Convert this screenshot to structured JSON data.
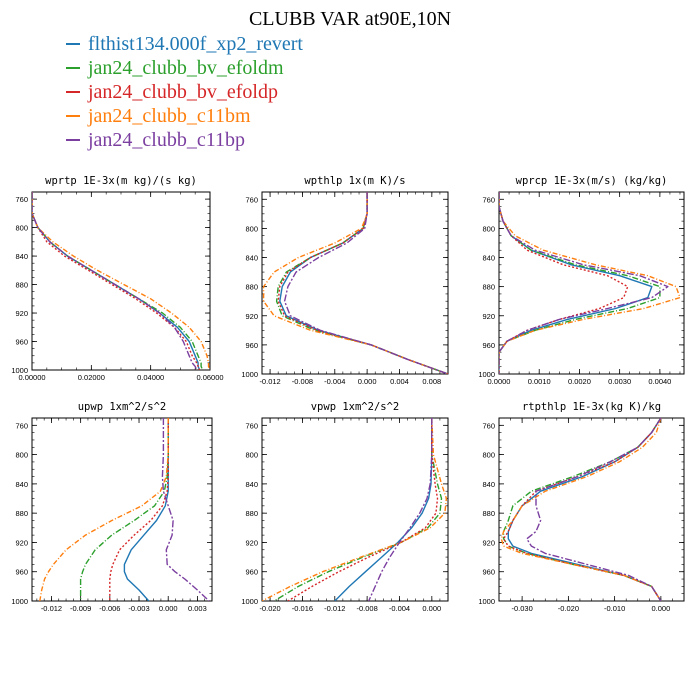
{
  "figure": {
    "title": "CLUBB VAR at90E,10N"
  },
  "legend": [
    {
      "label": "flthist134.000f_xp2_revert",
      "color": "#1f77b4",
      "dash": ""
    },
    {
      "label": "jan24_clubb_bv_efoldm",
      "color": "#2ca02c",
      "dash": "6,2,1,2"
    },
    {
      "label": "jan24_clubb_bv_efoldp",
      "color": "#d62728",
      "dash": "2,2"
    },
    {
      "label": "jan24_clubb_c11bm",
      "color": "#ff7f0e",
      "dash": "5,2,1,2"
    },
    {
      "label": "jan24_clubb_c11bp",
      "color": "#7b3fa0",
      "dash": "7,2,2,2"
    }
  ],
  "chart_data": [
    {
      "type": "line",
      "title": "wprtp  1E-3x(m kg)/(s kg)",
      "xlim": [
        0,
        0.06
      ],
      "ylim": [
        1000,
        750
      ],
      "y_reversed": true,
      "xticks": [
        0,
        0.02,
        0.04,
        0.06
      ],
      "xtick_labels": [
        "0.00000",
        "0.02000",
        "0.04000",
        "0.06000"
      ],
      "yticks": [
        760,
        800,
        840,
        880,
        920,
        960,
        1000
      ],
      "ytick_labels": [
        "760",
        "800",
        "840",
        "880",
        "920",
        "960",
        "1000"
      ],
      "y": [
        750,
        780,
        800,
        820,
        840,
        860,
        880,
        900,
        920,
        940,
        960,
        980,
        990,
        995,
        1000
      ],
      "series": [
        {
          "values": [
            0,
            0,
            0.002,
            0.006,
            0.012,
            0.02,
            0.028,
            0.036,
            0.043,
            0.049,
            0.053,
            0.055,
            0.056,
            0.056,
            0.0565
          ]
        },
        {
          "values": [
            0,
            0,
            0.002,
            0.006,
            0.012,
            0.02,
            0.028,
            0.036,
            0.044,
            0.05,
            0.054,
            0.056,
            0.057,
            0.057,
            0.0575
          ]
        },
        {
          "values": [
            0,
            0,
            0.002,
            0.005,
            0.011,
            0.019,
            0.027,
            0.035,
            0.042,
            0.048,
            0.052,
            0.054,
            0.0555,
            0.056,
            0.0565
          ]
        },
        {
          "values": [
            0,
            0,
            0.002,
            0.007,
            0.014,
            0.022,
            0.031,
            0.04,
            0.047,
            0.053,
            0.057,
            0.059,
            0.0595,
            0.0595,
            0.06
          ]
        },
        {
          "values": [
            0,
            0,
            0.002,
            0.006,
            0.012,
            0.02,
            0.028,
            0.036,
            0.043,
            0.048,
            0.051,
            0.053,
            0.054,
            0.055,
            0.0555
          ]
        }
      ]
    },
    {
      "type": "line",
      "title": "wpthlp  1x(m K)/s",
      "xlim": [
        -0.013,
        0.01
      ],
      "ylim": [
        1000,
        750
      ],
      "y_reversed": true,
      "xticks": [
        -0.012,
        -0.008,
        -0.004,
        0,
        0.004,
        0.008
      ],
      "xtick_labels": [
        "-0.012",
        "-0.008",
        "-0.004",
        "0.000",
        "0.004",
        "0.008"
      ],
      "yticks": [
        760,
        800,
        840,
        880,
        920,
        960,
        1000
      ],
      "ytick_labels": [
        "760",
        "800",
        "840",
        "880",
        "920",
        "960",
        "1000"
      ],
      "y": [
        750,
        780,
        800,
        820,
        840,
        860,
        880,
        900,
        920,
        940,
        960,
        980,
        1000
      ],
      "series": [
        {
          "values": [
            0,
            0,
            -0.0005,
            -0.003,
            -0.007,
            -0.0095,
            -0.0105,
            -0.0108,
            -0.01,
            -0.006,
            0.0005,
            0.005,
            0.01
          ]
        },
        {
          "values": [
            0,
            0,
            -0.0005,
            -0.003,
            -0.007,
            -0.01,
            -0.011,
            -0.0112,
            -0.0105,
            -0.0065,
            0.0005,
            0.005,
            0.01
          ]
        },
        {
          "values": [
            0,
            0,
            -0.0005,
            -0.003,
            -0.007,
            -0.0098,
            -0.0108,
            -0.011,
            -0.0102,
            -0.0062,
            0.0005,
            0.005,
            0.01
          ]
        },
        {
          "values": [
            0,
            0,
            -0.0007,
            -0.004,
            -0.0085,
            -0.0115,
            -0.0128,
            -0.0128,
            -0.0115,
            -0.007,
            0.0005,
            0.005,
            0.01
          ]
        },
        {
          "values": [
            0,
            0,
            -0.0003,
            -0.0025,
            -0.006,
            -0.0088,
            -0.0098,
            -0.0102,
            -0.0095,
            -0.0058,
            0.0005,
            0.005,
            0.01
          ]
        }
      ]
    },
    {
      "type": "line",
      "title": "wprcp  1E-3x(m/s) (kg/kg)",
      "xlim": [
        0,
        0.0046
      ],
      "ylim": [
        1000,
        750
      ],
      "y_reversed": true,
      "xticks": [
        0,
        0.001,
        0.002,
        0.003,
        0.004
      ],
      "xtick_labels": [
        "0.0000",
        "0.0010",
        "0.0020",
        "0.0030",
        "0.0040"
      ],
      "yticks": [
        760,
        800,
        840,
        880,
        920,
        960,
        1000
      ],
      "ytick_labels": [
        "760",
        "800",
        "840",
        "880",
        "920",
        "960",
        "1000"
      ],
      "y": [
        750,
        770,
        790,
        810,
        830,
        850,
        865,
        880,
        895,
        910,
        925,
        940,
        955,
        970,
        985,
        1000
      ],
      "series": [
        {
          "values": [
            0,
            0,
            0.0001,
            0.0003,
            0.0008,
            0.0018,
            0.003,
            0.0038,
            0.0037,
            0.0029,
            0.0017,
            0.0008,
            0.0002,
            0,
            0,
            0
          ]
        },
        {
          "values": [
            0,
            0,
            0.0001,
            0.0003,
            0.0008,
            0.0019,
            0.0032,
            0.004,
            0.004,
            0.0032,
            0.0019,
            0.0009,
            0.0002,
            0,
            0,
            0
          ]
        },
        {
          "values": [
            0,
            0,
            0.0001,
            0.0003,
            0.0007,
            0.0016,
            0.0027,
            0.0032,
            0.0031,
            0.0025,
            0.0015,
            0.0007,
            0.0002,
            0,
            0,
            0
          ]
        },
        {
          "values": [
            0,
            0,
            0.0001,
            0.0004,
            0.0011,
            0.0024,
            0.0037,
            0.0044,
            0.0045,
            0.0036,
            0.0021,
            0.0009,
            0.0002,
            0,
            0,
            0
          ]
        },
        {
          "values": [
            0,
            0,
            0.0001,
            0.0003,
            0.0009,
            0.0021,
            0.0035,
            0.0042,
            0.0038,
            0.0027,
            0.0015,
            0.0007,
            0.0002,
            0,
            0,
            0
          ]
        }
      ]
    },
    {
      "type": "line",
      "title": "upwp  1xm^2/s^2",
      "xlim": [
        -0.014,
        0.0045
      ],
      "ylim": [
        1000,
        750
      ],
      "y_reversed": true,
      "xticks": [
        -0.012,
        -0.009,
        -0.006,
        -0.003,
        0,
        0.003
      ],
      "xtick_labels": [
        "-0.012",
        "-0.009",
        "-0.006",
        "-0.003",
        "0.000",
        "0.003"
      ],
      "yticks": [
        760,
        800,
        840,
        880,
        920,
        960,
        1000
      ],
      "ytick_labels": [
        "760",
        "800",
        "840",
        "880",
        "920",
        "960",
        "1000"
      ],
      "y": [
        750,
        800,
        830,
        850,
        870,
        890,
        910,
        930,
        950,
        960,
        970,
        985,
        1000
      ],
      "series": [
        {
          "values": [
            0,
            0,
            0,
            0,
            -0.0003,
            -0.0012,
            -0.0025,
            -0.0038,
            -0.0045,
            -0.0045,
            -0.0042,
            -0.003,
            -0.002
          ]
        },
        {
          "values": [
            0,
            0,
            -0.0001,
            -0.0004,
            -0.0014,
            -0.0035,
            -0.0058,
            -0.0075,
            -0.0085,
            -0.0088,
            -0.009,
            -0.009,
            -0.009
          ]
        },
        {
          "values": [
            0,
            0,
            0,
            -0.0001,
            -0.0006,
            -0.0018,
            -0.0035,
            -0.005,
            -0.0057,
            -0.0059,
            -0.006,
            -0.006,
            -0.006
          ]
        },
        {
          "values": [
            0,
            0,
            -0.0002,
            -0.0008,
            -0.0027,
            -0.0058,
            -0.0085,
            -0.0105,
            -0.0118,
            -0.0123,
            -0.0127,
            -0.013,
            -0.0132
          ]
        },
        {
          "values": [
            -0.0005,
            -0.0005,
            -0.0006,
            -0.0005,
            0,
            0.0005,
            0.0004,
            -0.0002,
            -0.0001,
            0.0007,
            0.0017,
            0.003,
            0.0042
          ]
        }
      ]
    },
    {
      "type": "line",
      "title": "vpwp  1xm^2/s^2",
      "xlim": [
        -0.021,
        0.002
      ],
      "ylim": [
        1000,
        750
      ],
      "y_reversed": true,
      "xticks": [
        -0.02,
        -0.016,
        -0.012,
        -0.008,
        -0.004,
        0
      ],
      "xtick_labels": [
        "-0.020",
        "-0.016",
        "-0.012",
        "-0.008",
        "-0.004",
        "0.000"
      ],
      "yticks": [
        760,
        800,
        840,
        880,
        920,
        960,
        1000
      ],
      "ytick_labels": [
        "760",
        "800",
        "840",
        "880",
        "920",
        "960",
        "1000"
      ],
      "y": [
        750,
        800,
        840,
        860,
        880,
        900,
        920,
        940,
        960,
        980,
        1000
      ],
      "series": [
        {
          "values": [
            0,
            0,
            -0.0001,
            -0.0004,
            -0.0012,
            -0.0025,
            -0.0042,
            -0.0062,
            -0.0082,
            -0.0102,
            -0.012
          ]
        },
        {
          "values": [
            0,
            0,
            0.0007,
            0.0012,
            0.001,
            -0.0005,
            -0.0038,
            -0.0085,
            -0.0128,
            -0.0165,
            -0.0195
          ]
        },
        {
          "values": [
            0,
            0,
            0.0004,
            0.0007,
            0.0005,
            -0.0008,
            -0.0038,
            -0.0078,
            -0.0115,
            -0.0148,
            -0.0178
          ]
        },
        {
          "values": [
            0,
            0.0002,
            0.0012,
            0.0018,
            0.0016,
            -0.0002,
            -0.0038,
            -0.0088,
            -0.0135,
            -0.0175,
            -0.021
          ]
        },
        {
          "values": [
            0,
            0,
            -0.0002,
            -0.0006,
            -0.0015,
            -0.0027,
            -0.004,
            -0.0052,
            -0.0062,
            -0.007,
            -0.0078
          ]
        }
      ]
    },
    {
      "type": "line",
      "title": "rtpthlp  1E-3x(kg K)/kg",
      "xlim": [
        -0.035,
        0.005
      ],
      "ylim": [
        1000,
        750
      ],
      "y_reversed": true,
      "xticks": [
        -0.03,
        -0.02,
        -0.01,
        0
      ],
      "xtick_labels": [
        "-0.030",
        "-0.020",
        "-0.010",
        "0.000"
      ],
      "yticks": [
        760,
        800,
        840,
        880,
        920,
        960,
        1000
      ],
      "ytick_labels": [
        "760",
        "800",
        "840",
        "880",
        "920",
        "960",
        "1000"
      ],
      "y": [
        750,
        770,
        790,
        810,
        830,
        850,
        870,
        890,
        905,
        915,
        925,
        935,
        950,
        965,
        980,
        1000
      ],
      "series": [
        {
          "values": [
            0,
            -0.002,
            -0.005,
            -0.01,
            -0.017,
            -0.026,
            -0.03,
            -0.032,
            -0.033,
            -0.033,
            -0.032,
            -0.028,
            -0.018,
            -0.008,
            -0.002,
            0
          ]
        },
        {
          "values": [
            0,
            -0.002,
            -0.005,
            -0.011,
            -0.019,
            -0.028,
            -0.032,
            -0.033,
            -0.034,
            -0.034,
            -0.033,
            -0.029,
            -0.019,
            -0.008,
            -0.002,
            0
          ]
        },
        {
          "values": [
            0,
            -0.002,
            -0.005,
            -0.01,
            -0.018,
            -0.027,
            -0.03,
            -0.032,
            -0.033,
            -0.034,
            -0.033,
            -0.029,
            -0.019,
            -0.008,
            -0.002,
            0
          ]
        },
        {
          "values": [
            0,
            -0.001,
            -0.004,
            -0.009,
            -0.016,
            -0.025,
            -0.03,
            -0.032,
            -0.034,
            -0.0345,
            -0.034,
            -0.03,
            -0.019,
            -0.008,
            -0.002,
            0
          ]
        },
        {
          "values": [
            0,
            -0.002,
            -0.005,
            -0.011,
            -0.018,
            -0.027,
            -0.027,
            -0.026,
            -0.027,
            -0.029,
            -0.028,
            -0.025,
            -0.016,
            -0.007,
            -0.002,
            0
          ]
        }
      ]
    }
  ]
}
